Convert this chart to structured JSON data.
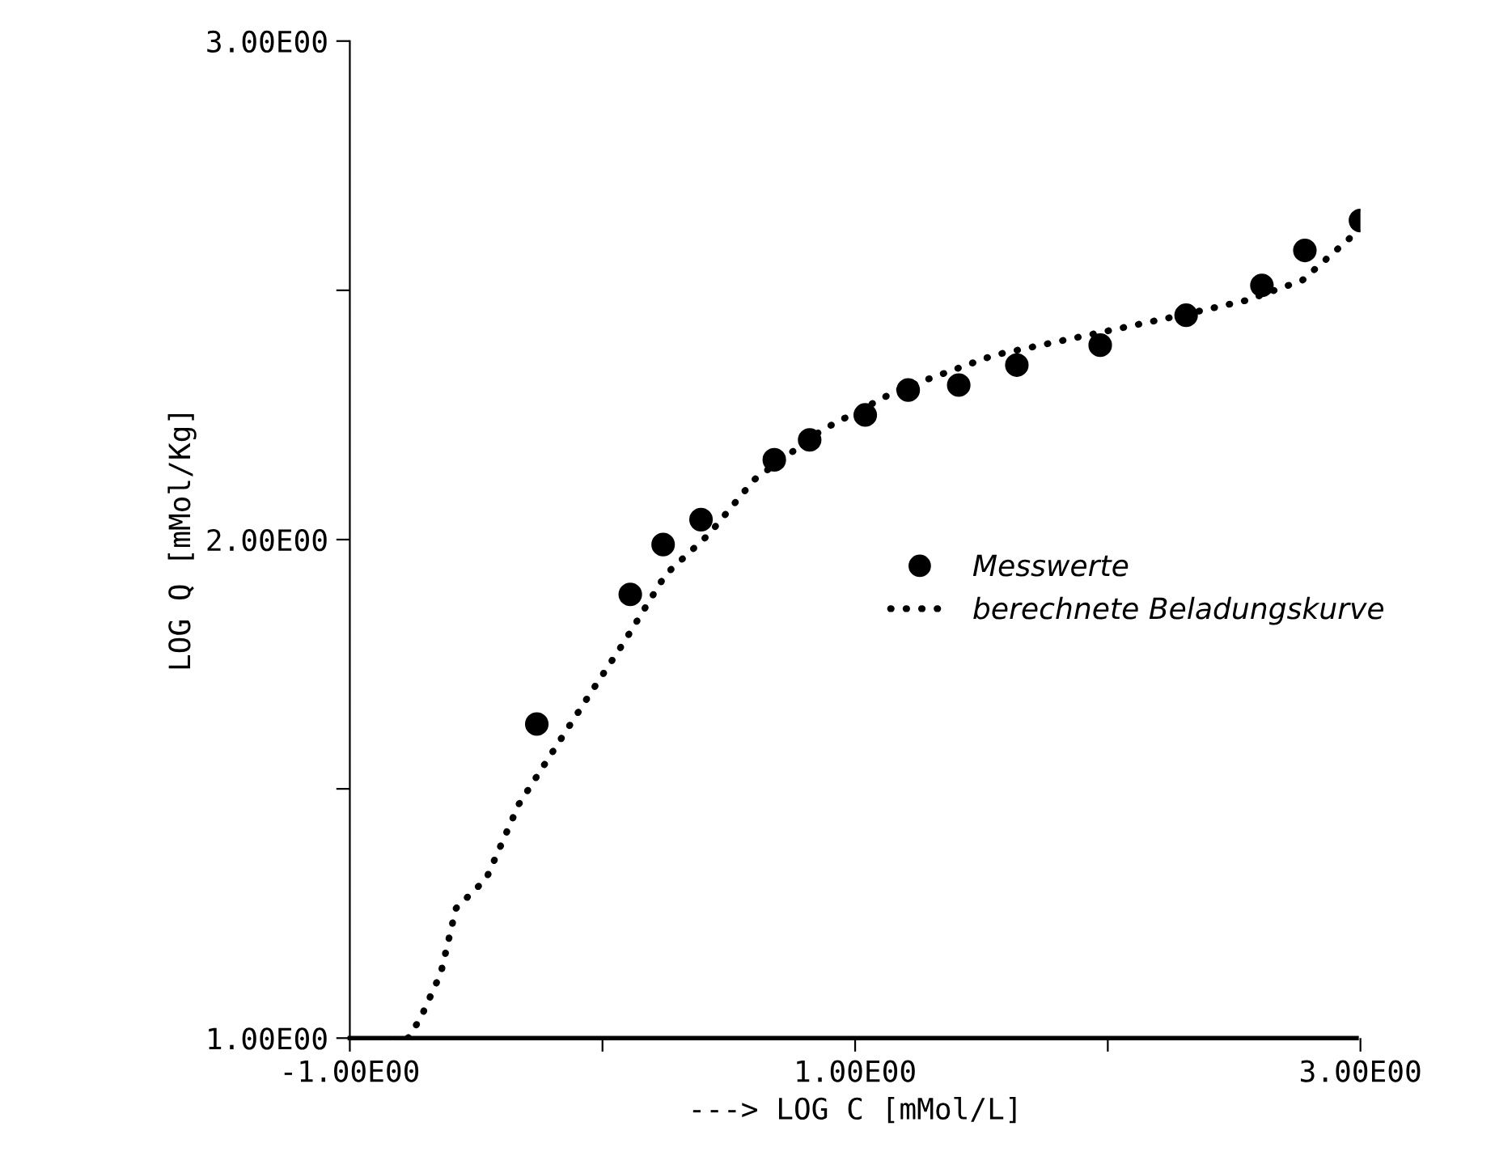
{
  "chart_data": {
    "type": "scatter",
    "xlabel": "---> LOG C [mMol/L]",
    "ylabel": "LOG Q [mMol/Kg]",
    "xlim": [
      -1,
      3
    ],
    "ylim": [
      1,
      3
    ],
    "xticks": [
      {
        "value": -1,
        "label": "-1.00E00"
      },
      {
        "value": 0,
        "label": null
      },
      {
        "value": 1,
        "label": "1.00E00"
      },
      {
        "value": 2,
        "label": null
      },
      {
        "value": 3,
        "label": "3.00E00"
      }
    ],
    "yticks": [
      {
        "value": 1,
        "label": "1.00E00"
      },
      {
        "value": 1.5,
        "label": null
      },
      {
        "value": 2,
        "label": "2.00E00"
      },
      {
        "value": 2.5,
        "label": null
      },
      {
        "value": 3,
        "label": "3.00E00"
      }
    ],
    "grid": false,
    "legend": "right",
    "series": [
      {
        "name": "Messwerte",
        "marker": "circle",
        "color": "#000000",
        "x": [
          -0.26,
          0.11,
          0.24,
          0.39,
          0.68,
          0.82,
          1.04,
          1.21,
          1.41,
          1.64,
          1.97,
          2.31,
          2.61,
          2.78,
          3.0
        ],
        "values": [
          1.63,
          1.89,
          1.99,
          2.04,
          2.16,
          2.2,
          2.25,
          2.3,
          2.31,
          2.35,
          2.39,
          2.45,
          2.51,
          2.58,
          2.64
        ]
      },
      {
        "name": "berechnete Beladungskurve",
        "type": "line",
        "line_style": "dotted",
        "marker": "none",
        "color": "#000000",
        "x": [
          -0.77,
          -0.72,
          -0.64,
          -0.58,
          -0.46,
          -0.33,
          -0.19,
          -0.05,
          0.08,
          0.25,
          0.42,
          0.6,
          0.87,
          1.17,
          1.55,
          1.92,
          2.29,
          2.55,
          2.77,
          2.97
        ],
        "values": [
          1.0,
          1.04,
          1.13,
          1.26,
          1.32,
          1.47,
          1.58,
          1.69,
          1.79,
          1.93,
          2.01,
          2.12,
          2.22,
          2.3,
          2.37,
          2.41,
          2.45,
          2.48,
          2.52,
          2.61
        ]
      }
    ]
  }
}
